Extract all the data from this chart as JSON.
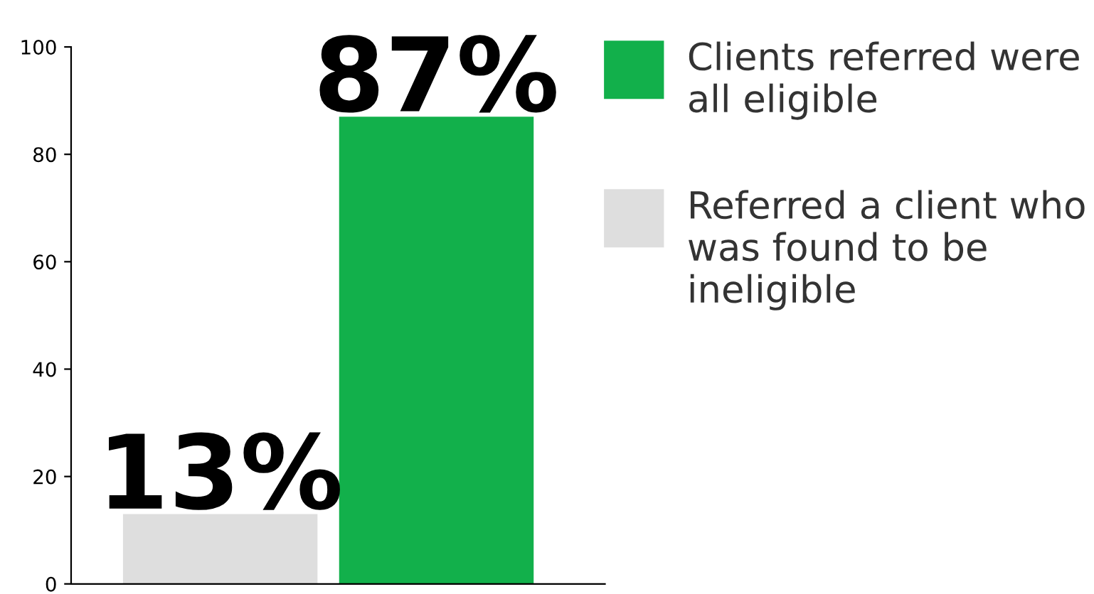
{
  "chart_data": {
    "type": "bar",
    "categories": [
      null,
      null
    ],
    "series": [
      {
        "name": "Clients referred were all eligible",
        "color": "#12b04b",
        "values": [
          null,
          87
        ],
        "value_labels": [
          null,
          "87%"
        ]
      },
      {
        "name": "Referred a client who was found to be ineligible",
        "color": "#dedede",
        "values": [
          13,
          null
        ],
        "value_labels": [
          "13%",
          null
        ]
      }
    ],
    "ylim": [
      0,
      100
    ],
    "yticks": [
      0,
      20,
      40,
      60,
      80,
      100
    ],
    "grid": false,
    "legend": "right"
  }
}
